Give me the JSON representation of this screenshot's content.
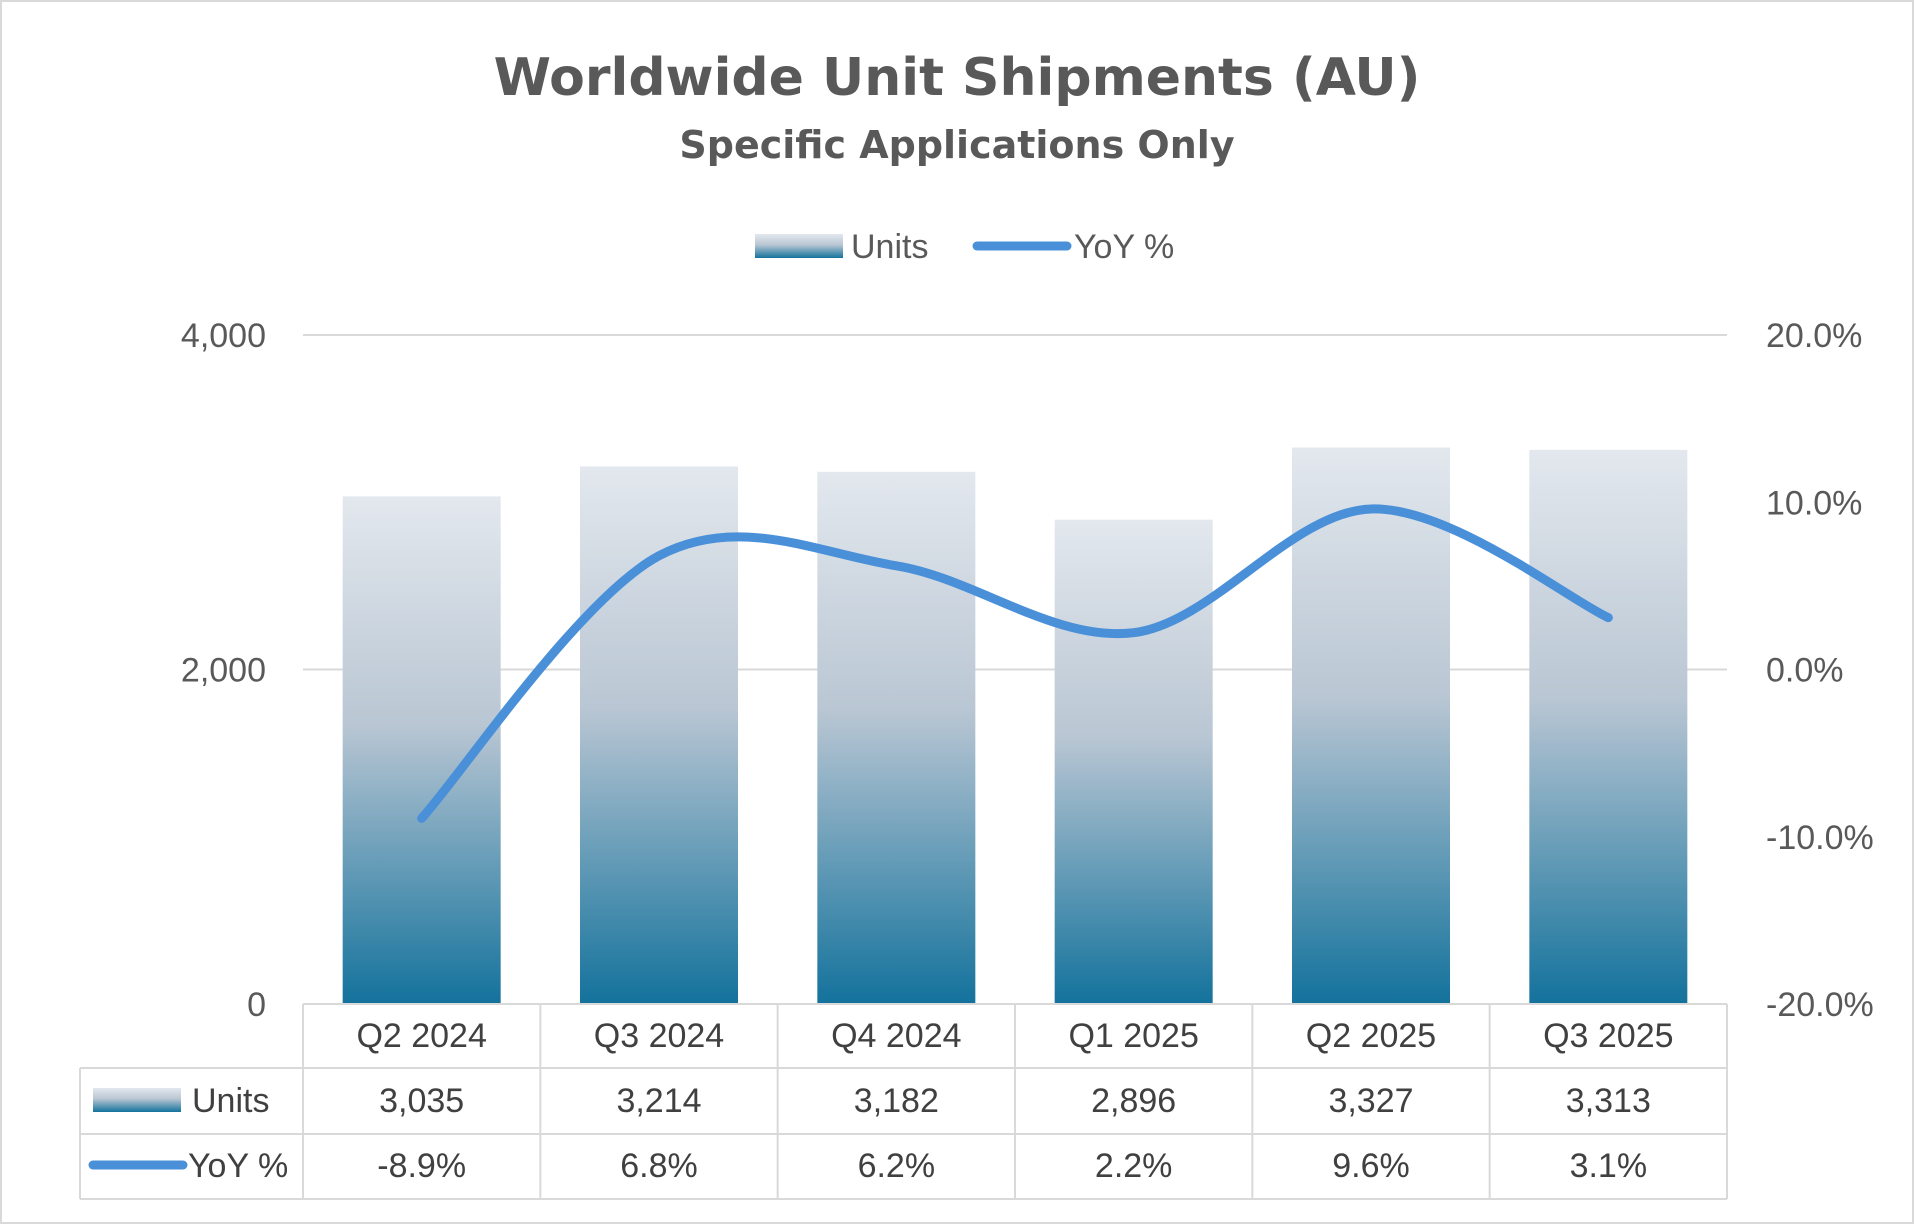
{
  "chart_data": {
    "type": "bar",
    "title": "Worldwide Unit Shipments (AU)",
    "subtitle": "Specific Applications Only",
    "categories": [
      "Q2 2024",
      "Q3 2024",
      "Q4 2024",
      "Q1 2025",
      "Q2 2025",
      "Q3 2025"
    ],
    "series": [
      {
        "name": "Units",
        "type": "bar",
        "axis": "left",
        "values": [
          3035,
          3214,
          3182,
          2896,
          3327,
          3313
        ],
        "labels": [
          "3,035",
          "3,214",
          "3,182",
          "2,896",
          "3,327",
          "3,313"
        ],
        "color_top": "#e3e8ee",
        "color_bottom": "#13729c"
      },
      {
        "name": "YoY %",
        "type": "line",
        "axis": "right",
        "smooth": true,
        "values": [
          -8.9,
          6.8,
          6.2,
          2.2,
          9.6,
          3.1
        ],
        "labels": [
          "-8.9%",
          "6.8%",
          "6.2%",
          "2.2%",
          "9.6%",
          "3.1%"
        ],
        "color": "#4a90d9"
      }
    ],
    "y_left": {
      "ylim": [
        0,
        4000
      ],
      "ticks": [
        0,
        2000,
        4000
      ],
      "tick_labels": [
        "0",
        "2,000",
        "4,000"
      ]
    },
    "y_right": {
      "ylim": [
        -20,
        20
      ],
      "ticks": [
        -20,
        -10,
        0,
        10,
        20
      ],
      "tick_labels": [
        "-20.0%",
        "-10.0%",
        "0.0%",
        "10.0%",
        "20.0%"
      ]
    },
    "grid": true,
    "legend": "top-center",
    "data_table": true
  }
}
